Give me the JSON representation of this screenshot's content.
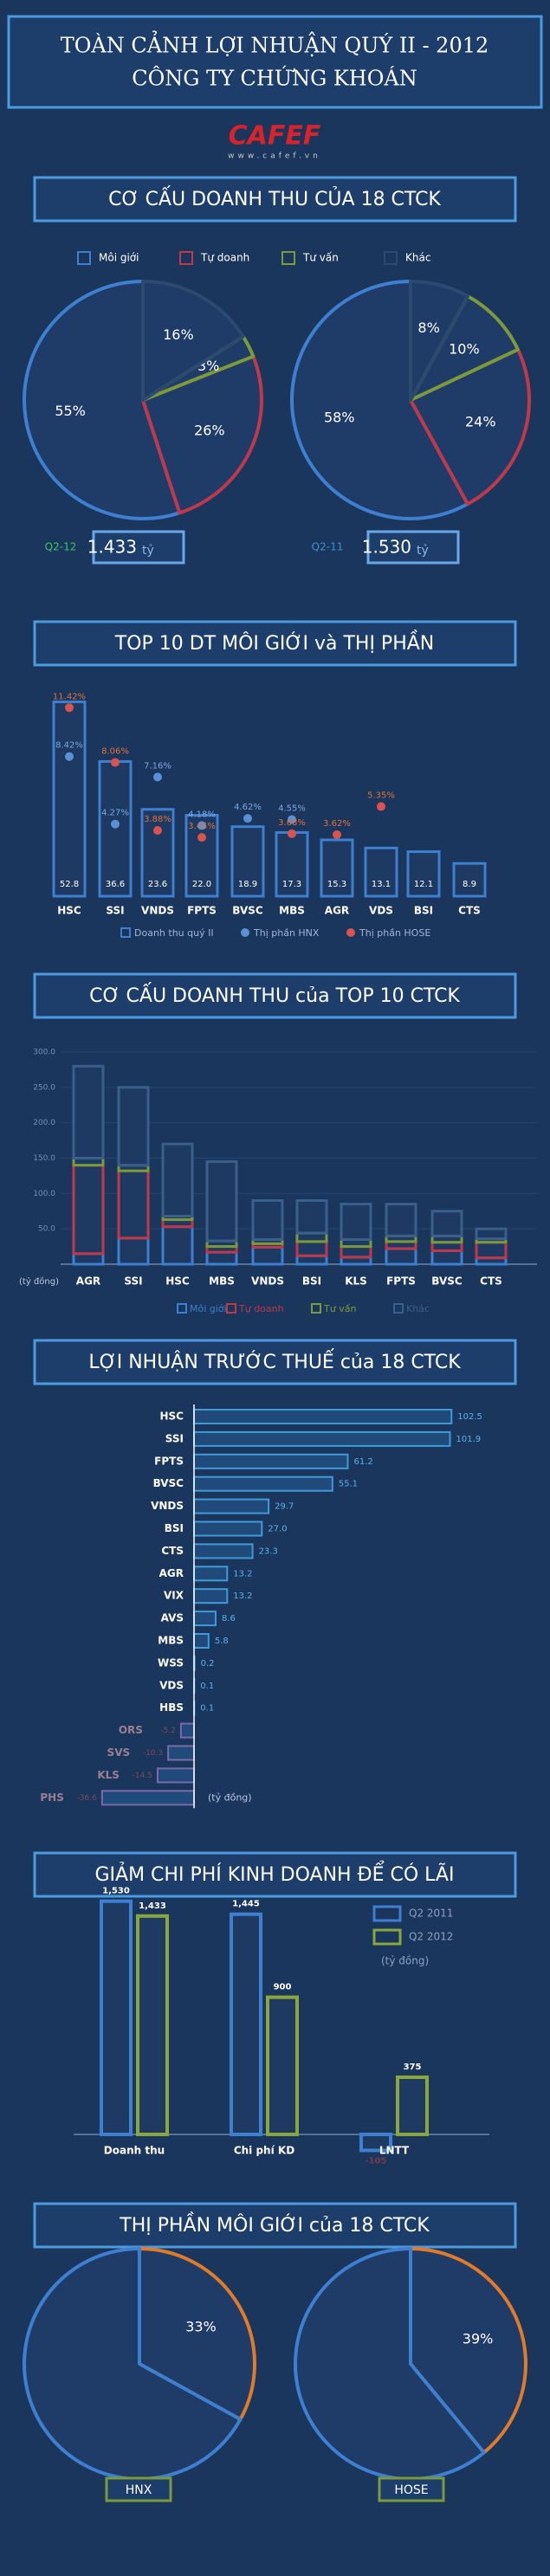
{
  "header": {
    "title_line1": "TOÀN CẢNH LỢI NHUẬN QUÝ II - 2012",
    "title_line2": "CÔNG TY CHỨNG KHOÁN",
    "logo": "CAFEF",
    "website": "www.cafef.vn"
  },
  "chart_data": [
    {
      "type": "pie",
      "title": "CƠ CẤU DOANH THU CỦA 18 CTCK",
      "categories": [
        "Môi giới",
        "Tự doanh",
        "Tư vấn",
        "Khác"
      ],
      "colors": [
        "#3f7fd0",
        "#c0394b",
        "#7b9a3a",
        "#2c4a70"
      ],
      "pies": [
        {
          "name": "Q2-12",
          "total": "1.433",
          "unit": "tỷ",
          "values": [
            55,
            26,
            3,
            16
          ],
          "value_labels": [
            "55%",
            "26%",
            "3%",
            "16%"
          ]
        },
        {
          "name": "Q2-11",
          "total": "1.530",
          "unit": "tỷ",
          "values": [
            58,
            24,
            10,
            8
          ],
          "value_labels": [
            "58%",
            "24%",
            "10%",
            "8%"
          ]
        }
      ]
    },
    {
      "type": "bar",
      "title": "TOP 10 DT MÔI GIỚI và THỊ PHẦN",
      "categories": [
        "HSC",
        "SSI",
        "VNDS",
        "FPTS",
        "BVSC",
        "MBS",
        "AGR",
        "VDS",
        "BSI",
        "CTS"
      ],
      "series": [
        {
          "name": "Doanh thu quý II",
          "color": "#3f7fd0",
          "values": [
            52.8,
            36.6,
            23.6,
            22.0,
            18.9,
            17.3,
            15.3,
            13.1,
            12.1,
            8.9
          ],
          "value_labels": [
            "52.8",
            "36.6",
            "23.6",
            "22.0",
            "18.9",
            "17.3",
            "15.3",
            "13.1",
            "12.1",
            "8.9"
          ]
        },
        {
          "name": "Thị phần HNX",
          "color": "#5b8fd6",
          "values": [
            8.42,
            4.27,
            7.16,
            4.18,
            4.62,
            4.55,
            null,
            null,
            null,
            null
          ],
          "value_labels": [
            "8.42%",
            "4.27%",
            "7.16%",
            "4.18%",
            "4.62%",
            "4.55%",
            null,
            null,
            null,
            null
          ]
        },
        {
          "name": "Thị phần HOSE",
          "color": "#d9534f",
          "values": [
            11.42,
            8.06,
            3.88,
            3.45,
            null,
            3.68,
            3.62,
            5.35,
            null,
            null
          ],
          "value_labels": [
            "11.42%",
            "8.06%",
            "3.88%",
            "3.45%",
            null,
            "3.68%",
            "3.62%",
            "5.35%",
            null,
            null
          ]
        }
      ]
    },
    {
      "type": "stacked_bar",
      "title": "CƠ CẤU DOANH THU của TOP 10 CTCK",
      "unit_label": "(tỷ đồng)",
      "categories": [
        "AGR",
        "SSI",
        "HSC",
        "MBS",
        "VNDS",
        "BSI",
        "KLS",
        "FPTS",
        "BVSC",
        "CTS"
      ],
      "ylim": [
        0,
        300
      ],
      "yticks": [
        {
          "value": 50,
          "label": "50.0"
        },
        {
          "value": 100,
          "label": "100.0"
        },
        {
          "value": 150,
          "label": "150.0"
        },
        {
          "value": 200,
          "label": "200.0"
        },
        {
          "value": 250,
          "label": "250.0"
        },
        {
          "value": 300,
          "label": "300.0"
        }
      ],
      "series": [
        {
          "name": "Môi giới",
          "color": "#3f7fd0",
          "values": [
            15,
            37,
            53,
            17,
            24,
            12,
            10,
            22,
            19,
            9
          ]
        },
        {
          "name": "Tự doanh",
          "color": "#c0394b",
          "values": [
            125,
            95,
            10,
            8,
            5,
            20,
            15,
            10,
            12,
            22
          ]
        },
        {
          "name": "Tư vấn",
          "color": "#7b9a3a",
          "values": [
            10,
            8,
            5,
            8,
            6,
            12,
            10,
            8,
            9,
            5
          ]
        },
        {
          "name": "Khác",
          "color": "#3a5f8a",
          "values": [
            130,
            110,
            102,
            112,
            55,
            46,
            50,
            45,
            35,
            14
          ]
        }
      ]
    },
    {
      "type": "hbar",
      "title": "LỢI NHUẬN TRƯỚC THUẾ của 18 CTCK",
      "unit_label": "(tỷ đồng)",
      "color": "#3f9ad8",
      "categories": [
        "HSC",
        "SSI",
        "FPTS",
        "BVSC",
        "VNDS",
        "BSI",
        "CTS",
        "AGR",
        "VIX",
        "AVS",
        "MBS",
        "WSS",
        "VDS",
        "HBS",
        "ORS",
        "SVS",
        "KLS",
        "PHS"
      ],
      "values": [
        102.5,
        101.9,
        61.2,
        55.1,
        29.7,
        27.0,
        23.3,
        13.2,
        13.2,
        8.6,
        5.8,
        0.2,
        0.1,
        0.1,
        -5.2,
        -10.3,
        -14.5,
        -36.6
      ],
      "value_labels": [
        "102.5",
        "101.9",
        "61.2",
        "55.1",
        "29.7",
        "27.0",
        "23.3",
        "13.2",
        "13.2",
        "8.6",
        "5.8",
        "0.2",
        "0.1",
        "0.1",
        "-5.2",
        "-10.3",
        "-14.5",
        "-36.6"
      ]
    },
    {
      "type": "grouped_bar",
      "title": "GIẢM CHI PHÍ KINH DOANH ĐỂ CÓ LÃI",
      "unit_label": "(tỷ đồng)",
      "categories": [
        "Doanh thu",
        "Chi phí KD",
        "LNTT"
      ],
      "series": [
        {
          "name": "Q2 2011",
          "color": "#3f7fd0",
          "values": [
            1530,
            1445,
            -105
          ],
          "value_labels": [
            "1,530",
            "1,445",
            "-105"
          ]
        },
        {
          "name": "Q2 2012",
          "color": "#8aa83a",
          "values": [
            1433,
            900,
            375
          ],
          "value_labels": [
            "1,433",
            "900",
            "375"
          ]
        }
      ]
    },
    {
      "type": "pie",
      "title": "THỊ PHẦN MÔI GIỚI của 18 CTCK",
      "colors": [
        "#e07b2a",
        "#3f7fd0"
      ],
      "pies": [
        {
          "name": "HNX",
          "values": [
            33,
            67
          ],
          "value_labels": [
            "33%",
            null
          ]
        },
        {
          "name": "HOSE",
          "values": [
            39,
            61
          ],
          "value_labels": [
            "39%",
            null
          ]
        }
      ]
    }
  ]
}
